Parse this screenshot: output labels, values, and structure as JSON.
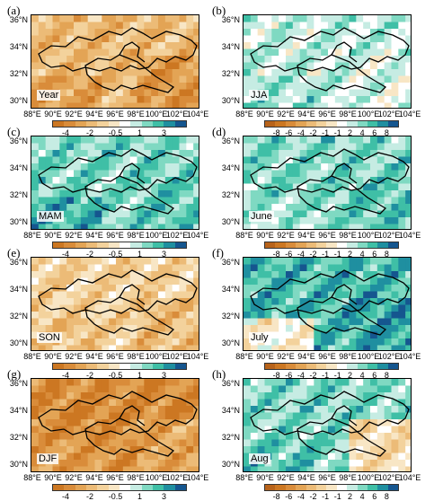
{
  "panels": [
    {
      "letter": "(a)",
      "season": "Year",
      "scale": "A"
    },
    {
      "letter": "(b)",
      "season": "JJA",
      "scale": "B"
    },
    {
      "letter": "(c)",
      "season": "MAM",
      "scale": "A"
    },
    {
      "letter": "(d)",
      "season": "June",
      "scale": "B"
    },
    {
      "letter": "(e)",
      "season": "SON",
      "scale": "A"
    },
    {
      "letter": "(f)",
      "season": "July",
      "scale": "B"
    },
    {
      "letter": "(g)",
      "season": "DJF",
      "scale": "A"
    },
    {
      "letter": "(h)",
      "season": "Aug",
      "scale": "B"
    }
  ],
  "lat_labels": [
    "36°N",
    "34°N",
    "32°N",
    "30°N"
  ],
  "lon_labels": [
    "88°E",
    "90°E",
    "92°E",
    "94°E",
    "96°E",
    "98°E",
    "100°E",
    "102°E",
    "104°E"
  ],
  "colorbars": {
    "A": {
      "labels": [
        "-4",
        "-2",
        "-0.5",
        "1",
        "3"
      ],
      "colors": [
        "#cc7722",
        "#d98c3a",
        "#e3a455",
        "#ecbb77",
        "#f3d29c",
        "#f8e6c5",
        "#ffffff",
        "#c6ece3",
        "#7fd9c2",
        "#3fbfa6",
        "#1f8fa0",
        "#15568f"
      ]
    },
    "B": {
      "labels": [
        "-8",
        "-6",
        "-4",
        "-2",
        "-1",
        "-1",
        "2",
        "4",
        "6",
        "8"
      ],
      "colors": [
        "#b8631a",
        "#cc7722",
        "#d98c3a",
        "#e3a455",
        "#ecbb77",
        "#f3d29c",
        "#f8e6c5",
        "#ffffff",
        "#c6ece3",
        "#7fd9c2",
        "#3fbfa6",
        "#1f8fa0",
        "#15568f"
      ]
    }
  },
  "fields": {
    "Year": {
      "base": 3,
      "sw": 1,
      "se": 0
    },
    "JJA": {
      "base": 8,
      "sw": 9,
      "se": 7
    },
    "MAM": {
      "base": 8,
      "sw": 10,
      "se": 9
    },
    "June": {
      "base": 9,
      "sw": 8,
      "se": 10
    },
    "SON": {
      "base": 4,
      "sw": 3,
      "se": 2
    },
    "July": {
      "base": 10,
      "sw": 4,
      "se": 11
    },
    "DJF": {
      "base": 1,
      "sw": 2,
      "se": 3
    },
    "Aug": {
      "base": 9,
      "sw": 10,
      "se": 2
    }
  }
}
